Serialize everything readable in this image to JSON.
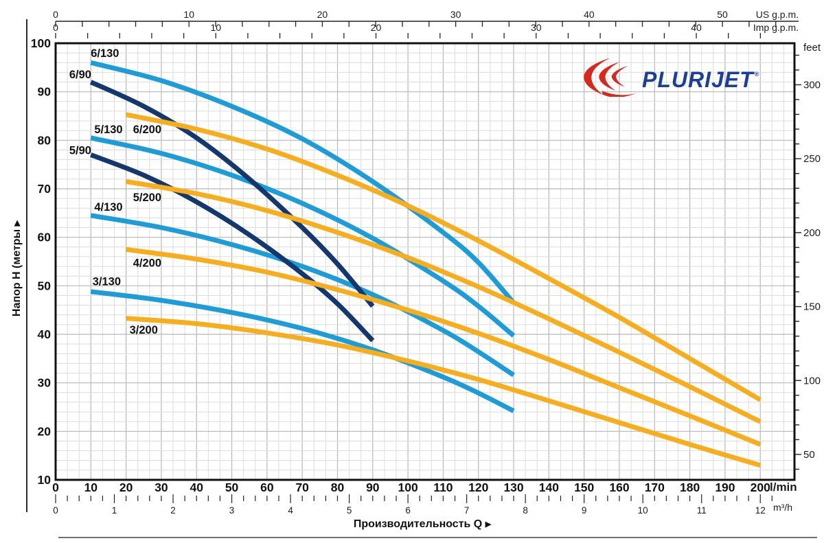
{
  "logo": {
    "text": "PLURIJET",
    "reg_mark": "®",
    "swoosh_color": "#d42a20",
    "text_color": "#1c3f94"
  },
  "labels": {
    "y_axis": "Напор H (метры",
    "y_axis_arrow": "▶",
    "x_axis": "Производительность Q",
    "x_axis_arrow": "▶",
    "unit_us": "US g.p.m.",
    "unit_imp": "Imp g.p.m.",
    "unit_feet": "feet",
    "unit_lmin": "l/min",
    "unit_m3h": "m³/h"
  },
  "chart_data": {
    "type": "line",
    "title": "PLURIJET pump performance curves",
    "xlabel": "Производительность Q",
    "ylabel": "Напор H (метры",
    "x_unit": "l/min",
    "y_unit": "m",
    "x_range": [
      0,
      209.7
    ],
    "y_range": [
      10,
      100
    ],
    "grid": {
      "x_minor": 3.3333,
      "x_major": 10,
      "y_minor": 2,
      "y_major": 10,
      "on": true
    },
    "legend": "labels-on-curves",
    "axes": {
      "lmin": {
        "labels": [
          "0",
          "10",
          "20",
          "30",
          "40",
          "50",
          "60",
          "70",
          "80",
          "90",
          "100",
          "110",
          "120",
          "130",
          "140",
          "150",
          "160",
          "170",
          "180",
          "190",
          "200"
        ],
        "label_step": 10
      },
      "m3h": {
        "labels": [
          "0",
          "1",
          "2",
          "3",
          "4",
          "5",
          "6",
          "7",
          "8",
          "9",
          "10",
          "11",
          "12"
        ],
        "factor": 16.6667,
        "tick_step": 0.2,
        "max": 12.3
      },
      "us_gpm": {
        "labels": [
          "0",
          "10",
          "20",
          "30",
          "40",
          "50"
        ],
        "factor": 3.785,
        "tick_step": 2,
        "max": 55
      },
      "imp_gpm": {
        "labels": [
          "0",
          "10",
          "20",
          "30",
          "40"
        ],
        "factor": 4.546,
        "tick_step": 2,
        "max": 45
      },
      "head_m": {
        "labels": [
          "10",
          "20",
          "30",
          "40",
          "50",
          "60",
          "70",
          "80",
          "90",
          "100"
        ],
        "min": 10,
        "max": 100,
        "label_step": 10
      },
      "feet": {
        "labels": [
          "50",
          "100",
          "150",
          "200",
          "250",
          "300"
        ],
        "factor": 0.3048,
        "tick_step": 10,
        "label_step": 50,
        "tick_min": 40,
        "tick_max": 320
      }
    },
    "series": [
      {
        "name": "6/130",
        "group": "130",
        "color": "#1e9cd7",
        "label_pos": [
          14,
          98
        ],
        "points": [
          [
            10,
            96
          ],
          [
            30,
            92.3
          ],
          [
            50,
            87
          ],
          [
            70,
            80.3
          ],
          [
            90,
            71.5
          ],
          [
            110,
            61
          ],
          [
            120,
            54.8
          ],
          [
            130,
            46.5
          ]
        ]
      },
      {
        "name": "5/130",
        "group": "130",
        "color": "#1e9cd7",
        "label_pos": [
          15,
          82.3
        ],
        "points": [
          [
            10,
            80.5
          ],
          [
            30,
            77.3
          ],
          [
            50,
            72.8
          ],
          [
            70,
            67
          ],
          [
            90,
            59.8
          ],
          [
            110,
            51
          ],
          [
            120,
            45.8
          ],
          [
            130,
            39.7
          ]
        ]
      },
      {
        "name": "4/130",
        "group": "130",
        "color": "#1e9cd7",
        "label_pos": [
          15,
          66.3
        ],
        "points": [
          [
            10,
            64.5
          ],
          [
            30,
            62
          ],
          [
            50,
            58.5
          ],
          [
            70,
            54
          ],
          [
            90,
            48.2
          ],
          [
            110,
            40.8
          ],
          [
            120,
            36.4
          ],
          [
            130,
            31.6
          ]
        ]
      },
      {
        "name": "3/130",
        "group": "130",
        "color": "#1e9cd7",
        "label_pos": [
          14.5,
          51
        ],
        "points": [
          [
            10,
            48.8
          ],
          [
            30,
            47
          ],
          [
            50,
            44.5
          ],
          [
            70,
            41.2
          ],
          [
            90,
            36.8
          ],
          [
            110,
            31.2
          ],
          [
            120,
            27.9
          ],
          [
            130,
            24.2
          ]
        ]
      },
      {
        "name": "6/90",
        "group": "90",
        "color": "#14386e",
        "label_pos": [
          7,
          93.6
        ],
        "points": [
          [
            10,
            92
          ],
          [
            25,
            87
          ],
          [
            40,
            80.5
          ],
          [
            55,
            72
          ],
          [
            70,
            62
          ],
          [
            80,
            54.5
          ],
          [
            90,
            45.8
          ]
        ]
      },
      {
        "name": "5/90",
        "group": "90",
        "color": "#14386e",
        "label_pos": [
          7,
          78
        ],
        "points": [
          [
            10,
            77
          ],
          [
            25,
            72.8
          ],
          [
            40,
            67.3
          ],
          [
            55,
            60.5
          ],
          [
            70,
            52.5
          ],
          [
            80,
            46.3
          ],
          [
            90,
            38.7
          ]
        ]
      },
      {
        "name": "6/200",
        "group": "200",
        "color": "#f6ae1e",
        "label_pos": [
          26,
          82.3
        ],
        "points": [
          [
            20,
            85.3
          ],
          [
            40,
            82.3
          ],
          [
            60,
            78.2
          ],
          [
            80,
            72.8
          ],
          [
            100,
            66.5
          ],
          [
            120,
            59.3
          ],
          [
            140,
            51.5
          ],
          [
            160,
            43.5
          ],
          [
            180,
            35
          ],
          [
            200,
            26.5
          ]
        ]
      },
      {
        "name": "5/200",
        "group": "200",
        "color": "#f6ae1e",
        "label_pos": [
          26,
          68.3
        ],
        "points": [
          [
            20,
            71.5
          ],
          [
            40,
            69
          ],
          [
            60,
            65.5
          ],
          [
            80,
            61
          ],
          [
            100,
            55.8
          ],
          [
            120,
            49.8
          ],
          [
            140,
            43.2
          ],
          [
            160,
            36.3
          ],
          [
            180,
            29.2
          ],
          [
            200,
            22
          ]
        ]
      },
      {
        "name": "4/200",
        "group": "200",
        "color": "#f6ae1e",
        "label_pos": [
          26,
          54.8
        ],
        "points": [
          [
            20,
            57.5
          ],
          [
            40,
            55.5
          ],
          [
            60,
            52.8
          ],
          [
            80,
            49.2
          ],
          [
            100,
            45
          ],
          [
            120,
            40.2
          ],
          [
            140,
            34.8
          ],
          [
            160,
            29
          ],
          [
            180,
            23.2
          ],
          [
            200,
            17.3
          ]
        ]
      },
      {
        "name": "3/200",
        "group": "200",
        "color": "#f6ae1e",
        "label_pos": [
          25,
          41
        ],
        "points": [
          [
            20,
            43.3
          ],
          [
            40,
            42.2
          ],
          [
            60,
            40.3
          ],
          [
            80,
            37.8
          ],
          [
            100,
            34.5
          ],
          [
            120,
            30.7
          ],
          [
            140,
            26.3
          ],
          [
            160,
            21.8
          ],
          [
            180,
            17.3
          ],
          [
            200,
            13
          ]
        ]
      }
    ]
  }
}
